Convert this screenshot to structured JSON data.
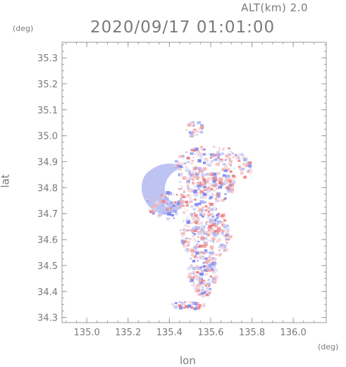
{
  "header": {
    "altitude_label": "ALT(km)  2.0",
    "timestamp": "2020/09/17 01:01:00"
  },
  "axes": {
    "y_unit": "(deg)",
    "x_unit": "(deg)",
    "y_label": "lat",
    "x_label": "lon",
    "x_ticks": [
      "135.0",
      "135.2",
      "135.4",
      "135.6",
      "135.8",
      "136.0"
    ],
    "y_ticks": [
      "35.3",
      "35.2",
      "35.1",
      "35.0",
      "34.9",
      "34.8",
      "34.7",
      "34.6",
      "34.5",
      "34.4",
      "34.3"
    ],
    "x_range": [
      134.88,
      136.16
    ],
    "y_range": [
      34.28,
      35.36
    ]
  },
  "colors": {
    "axis": "#9a9a9a",
    "positive": "#ef7b7b",
    "negative": "#7b86ef",
    "light_blue": "#b9c0f2"
  }
}
